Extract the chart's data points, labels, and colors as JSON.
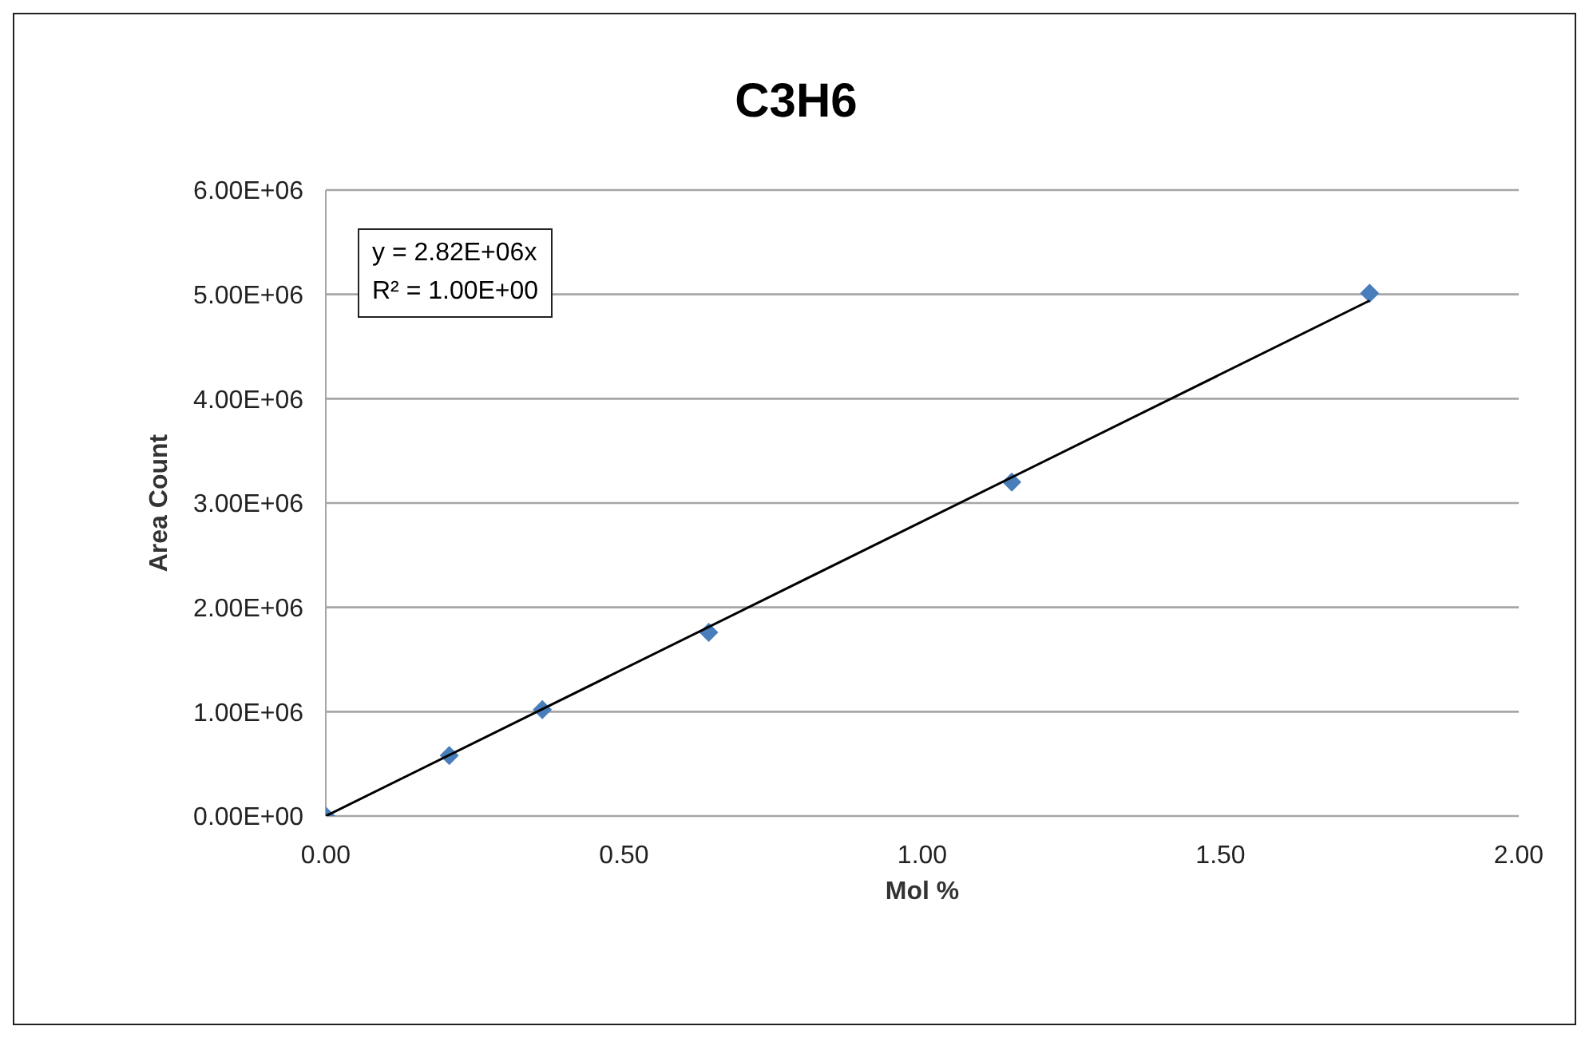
{
  "chart_data": {
    "type": "scatter",
    "title": "C3H6",
    "xlabel": "Mol %",
    "ylabel": "Area Count",
    "annotations": [
      "y = 2.82E+06x",
      "R² = 1.00E+00"
    ],
    "series": [
      {
        "color": "#4a7ebb",
        "marker": "diamond",
        "x": [
          0,
          0.207,
          0.363,
          0.642,
          1.15,
          1.75
        ],
        "values": [
          0,
          580000,
          1020000,
          1760000,
          3200000,
          5010000
        ]
      },
      {
        "type": "line",
        "color": "#000000",
        "marker": "none",
        "line_style": "solid",
        "x": [
          0,
          1.75
        ],
        "values": [
          0,
          4940000
        ]
      }
    ],
    "xlim": [
      0,
      2
    ],
    "xticks": [
      {
        "value": 0,
        "label": "0.00"
      },
      {
        "value": 0.5,
        "label": "0.50"
      },
      {
        "value": 1,
        "label": "1.00"
      },
      {
        "value": 1.5,
        "label": "1.50"
      },
      {
        "value": 2,
        "label": "2.00"
      }
    ],
    "ylim": [
      0,
      6000000
    ],
    "yticks": [
      {
        "value": 0,
        "label": "0.00E+00"
      },
      {
        "value": 1000000,
        "label": "1.00E+06"
      },
      {
        "value": 2000000,
        "label": "2.00E+06"
      },
      {
        "value": 3000000,
        "label": "3.00E+06"
      },
      {
        "value": 4000000,
        "label": "4.00E+06"
      },
      {
        "value": 5000000,
        "label": "5.00E+06"
      },
      {
        "value": 6000000,
        "label": "6.00E+06"
      }
    ],
    "grid": "y",
    "legend": false
  }
}
